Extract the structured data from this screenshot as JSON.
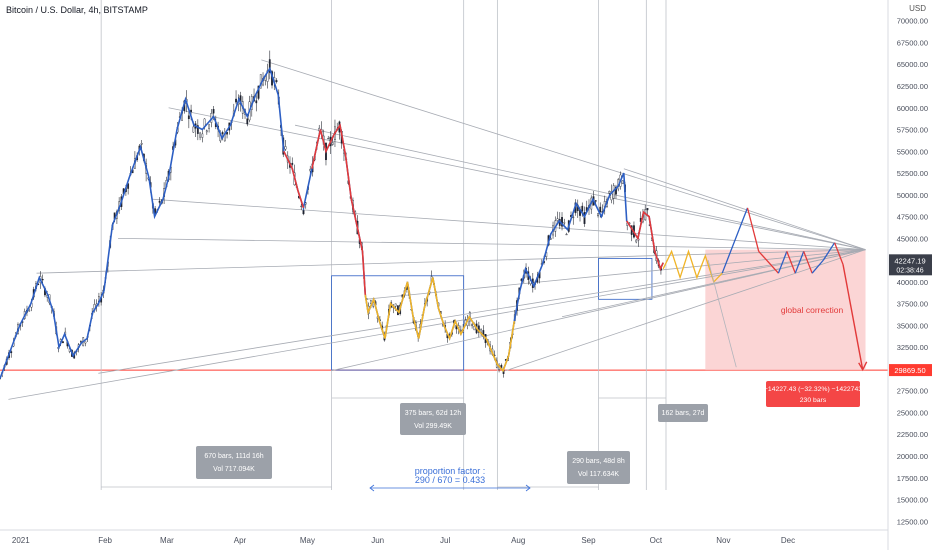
{
  "header": {
    "symbol_title": "Bitcoin / U.S. Dollar, 4h, BITSTAMP",
    "currency": "USD"
  },
  "chart_data": {
    "type": "candlestick",
    "x_ticks": [
      "2021",
      "Feb",
      "Mar",
      "Apr",
      "May",
      "Jun",
      "Jul",
      "Aug",
      "Sep",
      "Oct",
      "Nov",
      "Dec"
    ],
    "y_ticks": [
      12500,
      15000,
      17500,
      20000,
      22500,
      25000,
      27500,
      30000,
      32500,
      35000,
      37500,
      40000,
      42500,
      45000,
      47500,
      50000,
      52500,
      55000,
      57500,
      60000,
      62500,
      65000,
      67500,
      70000
    ],
    "y_tick_labels": [
      "12500.00",
      "15000.00",
      "17500.00",
      "20000.00",
      "22500.00",
      "25000.00",
      "27500.00",
      "30000.00",
      "32500.00",
      "35000.00",
      "37500.00",
      "40000.00",
      "42500.00",
      "45000.00",
      "47500.00",
      "50000.00",
      "52500.00",
      "55000.00",
      "57500.00",
      "60000.00",
      "62500.00",
      "65000.00",
      "67500.00",
      "70000.00"
    ],
    "ylim": [
      11500,
      71000
    ],
    "price_path": [
      {
        "t": 0,
        "p": 28900
      },
      {
        "t": 3,
        "p": 31500
      },
      {
        "t": 7,
        "p": 35000
      },
      {
        "t": 11,
        "p": 37500
      },
      {
        "t": 14,
        "p": 40500
      },
      {
        "t": 17,
        "p": 38500
      },
      {
        "t": 19,
        "p": 36500
      },
      {
        "t": 21,
        "p": 32500
      },
      {
        "t": 23,
        "p": 34000
      },
      {
        "t": 26,
        "p": 31500
      },
      {
        "t": 29,
        "p": 33000
      },
      {
        "t": 31,
        "p": 33500
      },
      {
        "t": 33,
        "p": 36500
      },
      {
        "t": 35,
        "p": 37500
      },
      {
        "t": 37,
        "p": 39000
      },
      {
        "t": 40,
        "p": 46500
      },
      {
        "t": 43,
        "p": 49000
      },
      {
        "t": 46,
        "p": 52000
      },
      {
        "t": 50,
        "p": 55500
      },
      {
        "t": 53,
        "p": 52000
      },
      {
        "t": 55,
        "p": 47500
      },
      {
        "t": 58,
        "p": 49500
      },
      {
        "t": 60,
        "p": 52000
      },
      {
        "t": 63,
        "p": 57500
      },
      {
        "t": 66,
        "p": 61000
      },
      {
        "t": 69,
        "p": 58000
      },
      {
        "t": 72,
        "p": 57500
      },
      {
        "t": 76,
        "p": 59000
      },
      {
        "t": 79,
        "p": 56500
      },
      {
        "t": 82,
        "p": 58000
      },
      {
        "t": 85,
        "p": 61000
      },
      {
        "t": 88,
        "p": 59000
      },
      {
        "t": 91,
        "p": 61500
      },
      {
        "t": 94,
        "p": 63500
      },
      {
        "t": 96,
        "p": 64500
      },
      {
        "t": 99,
        "p": 61500
      },
      {
        "t": 101,
        "p": 55000
      },
      {
        "t": 104,
        "p": 53000
      },
      {
        "t": 106,
        "p": 50500
      },
      {
        "t": 108,
        "p": 48500
      },
      {
        "t": 111,
        "p": 53000
      },
      {
        "t": 114,
        "p": 57500
      },
      {
        "t": 116,
        "p": 55000
      },
      {
        "t": 119,
        "p": 57000
      },
      {
        "t": 121,
        "p": 58000
      },
      {
        "t": 123,
        "p": 54500
      },
      {
        "t": 125,
        "p": 49500
      },
      {
        "t": 127,
        "p": 46500
      },
      {
        "t": 129,
        "p": 43500
      },
      {
        "t": 130,
        "p": 38500
      },
      {
        "t": 131,
        "p": 36500
      },
      {
        "t": 133,
        "p": 38000
      },
      {
        "t": 135,
        "p": 35500
      },
      {
        "t": 137,
        "p": 33500
      },
      {
        "t": 139,
        "p": 37500
      },
      {
        "t": 142,
        "p": 36500
      },
      {
        "t": 145,
        "p": 40000
      },
      {
        "t": 147,
        "p": 36000
      },
      {
        "t": 149,
        "p": 33500
      },
      {
        "t": 151,
        "p": 37000
      },
      {
        "t": 154,
        "p": 40500
      },
      {
        "t": 156,
        "p": 37000
      },
      {
        "t": 158,
        "p": 35000
      },
      {
        "t": 160,
        "p": 33500
      },
      {
        "t": 162,
        "p": 35500
      },
      {
        "t": 164,
        "p": 34000
      },
      {
        "t": 167,
        "p": 36000
      },
      {
        "t": 170,
        "p": 34500
      },
      {
        "t": 173,
        "p": 33500
      },
      {
        "t": 175,
        "p": 32000
      },
      {
        "t": 177,
        "p": 30500
      },
      {
        "t": 179,
        "p": 29800
      },
      {
        "t": 181,
        "p": 31500
      },
      {
        "t": 183,
        "p": 35500
      },
      {
        "t": 185,
        "p": 39000
      },
      {
        "t": 187,
        "p": 41500
      },
      {
        "t": 190,
        "p": 39500
      },
      {
        "t": 193,
        "p": 42000
      },
      {
        "t": 196,
        "p": 45500
      },
      {
        "t": 199,
        "p": 47000
      },
      {
        "t": 202,
        "p": 46000
      },
      {
        "t": 205,
        "p": 49000
      },
      {
        "t": 208,
        "p": 47500
      },
      {
        "t": 211,
        "p": 49500
      },
      {
        "t": 214,
        "p": 47500
      },
      {
        "t": 217,
        "p": 50000
      },
      {
        "t": 220,
        "p": 51000
      },
      {
        "t": 222,
        "p": 52500
      },
      {
        "t": 223,
        "p": 47000
      },
      {
        "t": 225,
        "p": 46000
      },
      {
        "t": 227,
        "p": 45000
      },
      {
        "t": 229,
        "p": 48000
      },
      {
        "t": 231,
        "p": 47500
      },
      {
        "t": 233,
        "p": 43500
      },
      {
        "t": 235,
        "p": 41500
      },
      {
        "t": 236,
        "p": 42200
      }
    ],
    "red_segments": [
      [
        101,
        108
      ],
      [
        110,
        130
      ],
      [
        223,
        236
      ]
    ],
    "orange_segments": [
      [
        130,
        183
      ]
    ],
    "forecast_path": [
      {
        "t": 236,
        "p": 41500
      },
      {
        "t": 239,
        "p": 43500
      },
      {
        "t": 242,
        "p": 40500
      },
      {
        "t": 245,
        "p": 43500
      },
      {
        "t": 248,
        "p": 40500
      },
      {
        "t": 251,
        "p": 43000
      },
      {
        "t": 254,
        "p": 40000
      },
      {
        "t": 257,
        "p": 41000
      }
    ],
    "projection_path": [
      {
        "t": 257,
        "p": 41000
      },
      {
        "t": 263,
        "p": 46000
      },
      {
        "t": 266,
        "p": 48500
      },
      {
        "t": 270,
        "p": 43500
      },
      {
        "t": 277,
        "p": 41000
      },
      {
        "t": 280,
        "p": 43500
      },
      {
        "t": 283,
        "p": 41000
      },
      {
        "t": 286,
        "p": 43500
      },
      {
        "t": 289,
        "p": 41000
      },
      {
        "t": 293,
        "p": 42500
      },
      {
        "t": 297,
        "p": 44500
      },
      {
        "t": 300,
        "p": 42000
      }
    ],
    "correction_path": [
      {
        "t": 300,
        "p": 42000
      },
      {
        "t": 307,
        "p": 29900
      }
    ],
    "apex": {
      "t": 308,
      "p": 43700
    },
    "support_level": 29869.5,
    "last_price": 42247.19,
    "last_price_label": "42247.19",
    "countdown": "02:38:46",
    "support_label": "29869.50",
    "annotations": {
      "box1_line1": "670 bars, 111d 16h",
      "box1_line2": "Vol 717.094K",
      "box2_line1": "375 bars, 62d 12h",
      "box2_line2": "Vol 299.49K",
      "box3_line1": "290 bars, 48d 8h",
      "box3_line2": "Vol 117.634K",
      "box4_line1": "162 bars, 27d",
      "proportion_line1": "proportion factor :",
      "proportion_line2": "290 / 670 = 0.433",
      "global_correction": "global correction",
      "target_line1": "−14227.43 (−32.32%) −1422743",
      "target_line2": "230 bars"
    },
    "colors": {
      "blue_line": "#2d5fc4",
      "red_line": "#e23a3a",
      "orange_line": "#f0b428",
      "support_line": "#ff3b30",
      "target_label": "#f44646",
      "correction_zone": "#f9c7c7",
      "proportion_text": "#3a6fd8"
    }
  }
}
